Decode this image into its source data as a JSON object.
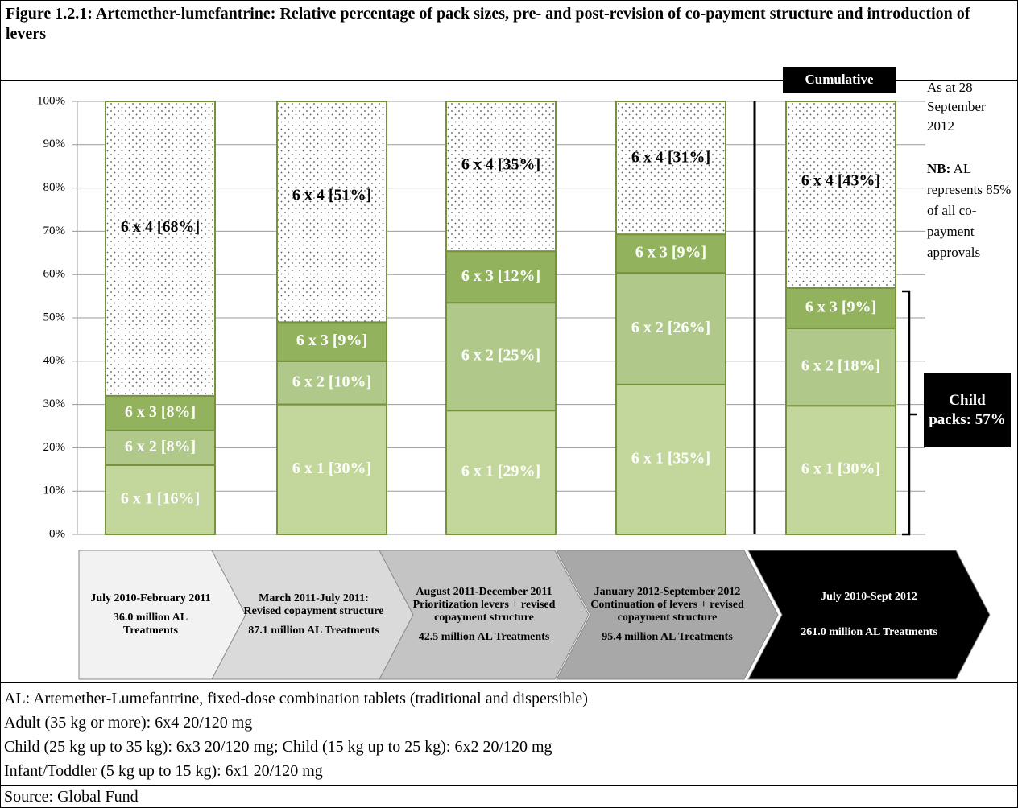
{
  "title": "Figure 1.2.1: Artemether-lumefantrine: Relative percentage of pack sizes, pre- and post-revision of co-payment structure and introduction of levers",
  "chart_data": {
    "type": "stacked_bar",
    "categories": [
      "July 2010-February 2011",
      "March 2011-July 2011: Revised copayment structure",
      "August 2011-December 2011 Prioritization levers + revised copayment structure",
      "January 2012-September 2012 Continuation of levers + revised copayment structure",
      "July 2010-Sept 2012"
    ],
    "treatments": [
      "36.0 million AL Treatments",
      "87.1 million AL Treatments",
      "42.5 million AL Treatments",
      "95.4 million AL Treatments",
      "261.0 million AL Treatments"
    ],
    "series": [
      {
        "color": "#c3d69b",
        "values": [
          16,
          30,
          28.6,
          34.6,
          29.7
        ],
        "value_labels": [
          "6 x 1 [16%]",
          "6 x 1 [30%]",
          "6 x 1 [29%]",
          "6 x 1 [35%]",
          "6 x 1 [30%]"
        ]
      },
      {
        "color": "#b0c98a",
        "values": [
          8,
          10,
          24.9,
          25.8,
          17.9
        ],
        "value_labels": [
          "6 x 2 [8%]",
          "6 x 2 [10%]",
          "6 x 2 [25%]",
          "6 x 2 [26%]",
          "6 x 2 [18%]"
        ]
      },
      {
        "color": "#92b25e",
        "values": [
          8,
          9,
          11.9,
          8.9,
          9.3
        ],
        "value_labels": [
          "6 x 3 [8%]",
          "6 x 3 [9%]",
          "6 x 3 [12%]",
          "6 x 3 [9%]",
          "6 x 3 [9%]"
        ]
      },
      {
        "color": "#ffffff",
        "pattern": "dotted",
        "values": [
          68,
          51,
          34.6,
          30.7,
          43.1
        ],
        "value_labels": [
          "6 x 4 [68%]",
          "6 x 4 [51%]",
          "6 x 4 [35%]",
          "6 x 4 [31%]",
          "6 x 4 [43%]"
        ]
      }
    ],
    "ylim": [
      0,
      100
    ],
    "yticks": [
      {
        "value": 0,
        "label": "0%"
      },
      {
        "value": 10,
        "label": "10%"
      },
      {
        "value": 20,
        "label": "20%"
      },
      {
        "value": 30,
        "label": "30%"
      },
      {
        "value": 40,
        "label": "40%"
      },
      {
        "value": 50,
        "label": "50%"
      },
      {
        "value": 60,
        "label": "60%"
      },
      {
        "value": 70,
        "label": "70%"
      },
      {
        "value": 80,
        "label": "80%"
      },
      {
        "value": 90,
        "label": "90%"
      },
      {
        "value": 100,
        "label": "100%"
      }
    ],
    "grid": true,
    "cumulative_label": "Cumulative",
    "date_note": "As at 28 September 2012",
    "note": {
      "label": "NB:",
      "text": "AL represents 85% of all co-payment approvals"
    },
    "bracket_label": "Child packs: 57%"
  },
  "notes": [
    "AL: Artemether-Lumefantrine, fixed-dose combination tablets (traditional and dispersible)",
    "Adult (35 kg or more): 6x4 20/120 mg",
    "Child (25 kg up to 35 kg): 6x3 20/120 mg; Child (15 kg up to 25 kg): 6x2 20/120 mg",
    "Infant/Toddler (5 kg up to 15 kg): 6x1 20/120 mg"
  ],
  "source": "Source: Global Fund"
}
